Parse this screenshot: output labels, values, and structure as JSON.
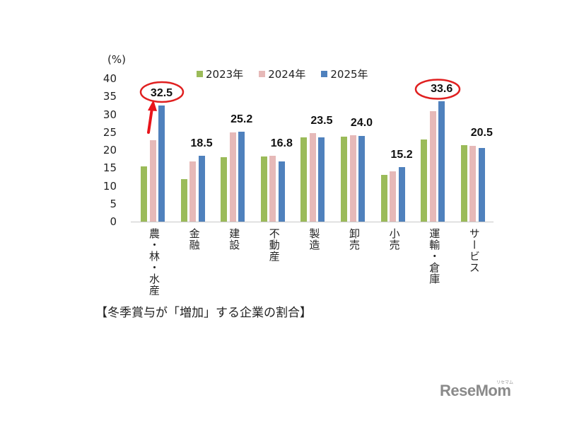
{
  "chart_data": {
    "type": "bar",
    "title": "【冬季賞与が「増加」する企業の割合】",
    "xlabel": "",
    "ylabel": "(%)",
    "ylim": [
      0,
      40
    ],
    "yticks": [
      0,
      5,
      10,
      15,
      20,
      25,
      30,
      35,
      40
    ],
    "grid": false,
    "legend_position": "top",
    "categories": [
      "農・林・水産",
      "金融",
      "建設",
      "不動産",
      "製造",
      "卸売",
      "小売",
      "運輸・倉庫",
      "サービス"
    ],
    "series": [
      {
        "name": "2023年",
        "color": "#9bbb59",
        "values": [
          15.4,
          11.9,
          18.0,
          18.2,
          23.5,
          23.7,
          13.1,
          22.9,
          21.4
        ]
      },
      {
        "name": "2024年",
        "color": "#e6b9b8",
        "values": [
          22.8,
          16.8,
          25.0,
          18.4,
          24.7,
          24.2,
          14.1,
          30.8,
          21.2
        ]
      },
      {
        "name": "2025年",
        "color": "#4f81bd",
        "values": [
          32.5,
          18.5,
          25.2,
          16.8,
          23.5,
          24.0,
          15.2,
          33.6,
          20.5
        ]
      }
    ],
    "data_labels": [
      "32.5",
      "18.5",
      "25.2",
      "16.8",
      "23.5",
      "24.0",
      "15.2",
      "33.6",
      "20.5"
    ],
    "annotations": [
      {
        "type": "ellipse",
        "target": "農・林・水産 2025年",
        "color": "#e02020"
      },
      {
        "type": "arrow",
        "target": "農・林・水産 2025年",
        "color": "#e02020"
      },
      {
        "type": "ellipse",
        "target": "運輸・倉庫 2025年",
        "color": "#e02020"
      }
    ]
  },
  "chart": {
    "unit_label": "(%)",
    "caption": "【冬季賞与が「増加」する企業の割合】",
    "legend": [
      "2023年",
      "2024年",
      "2025年"
    ]
  },
  "branding": {
    "logo_text": "ReseMom",
    "logo_sub": "リセマム"
  }
}
